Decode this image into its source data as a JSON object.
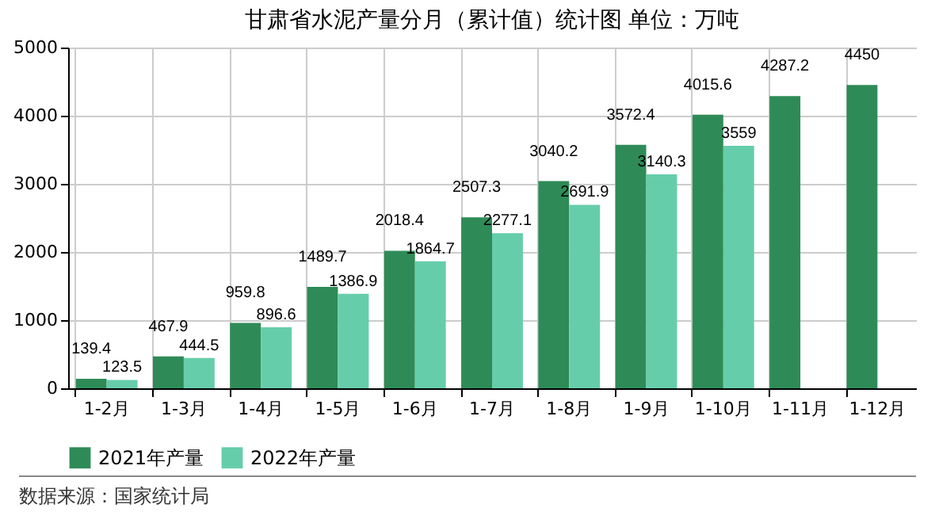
{
  "chart_data": {
    "type": "bar",
    "title": "甘肃省水泥产量分月（累计值）统计图 单位：万吨",
    "categories": [
      "1-2月",
      "1-3月",
      "1-4月",
      "1-5月",
      "1-6月",
      "1-7月",
      "1-8月",
      "1-9月",
      "1-10月",
      "1-11月",
      "1-12月"
    ],
    "series": [
      {
        "name": "2021年产量",
        "color": "#2e8b57",
        "values": [
          139.4,
          467.9,
          959.8,
          1489.7,
          2018.4,
          2507.3,
          3040.2,
          3572.4,
          4015.6,
          4287.2,
          4450
        ]
      },
      {
        "name": "2022年产量",
        "color": "#66cdaa",
        "values": [
          123.5,
          444.5,
          896.6,
          1386.9,
          1864.7,
          2277.1,
          2691.9,
          3140.3,
          3559,
          null,
          null
        ]
      }
    ],
    "ylim": [
      0,
      5000
    ],
    "yticks": [
      0,
      1000,
      2000,
      3000,
      4000,
      5000
    ],
    "grid": true,
    "legend": "bottom",
    "data_labels": true,
    "annotations": [
      "数据来源：国家统计局"
    ]
  }
}
